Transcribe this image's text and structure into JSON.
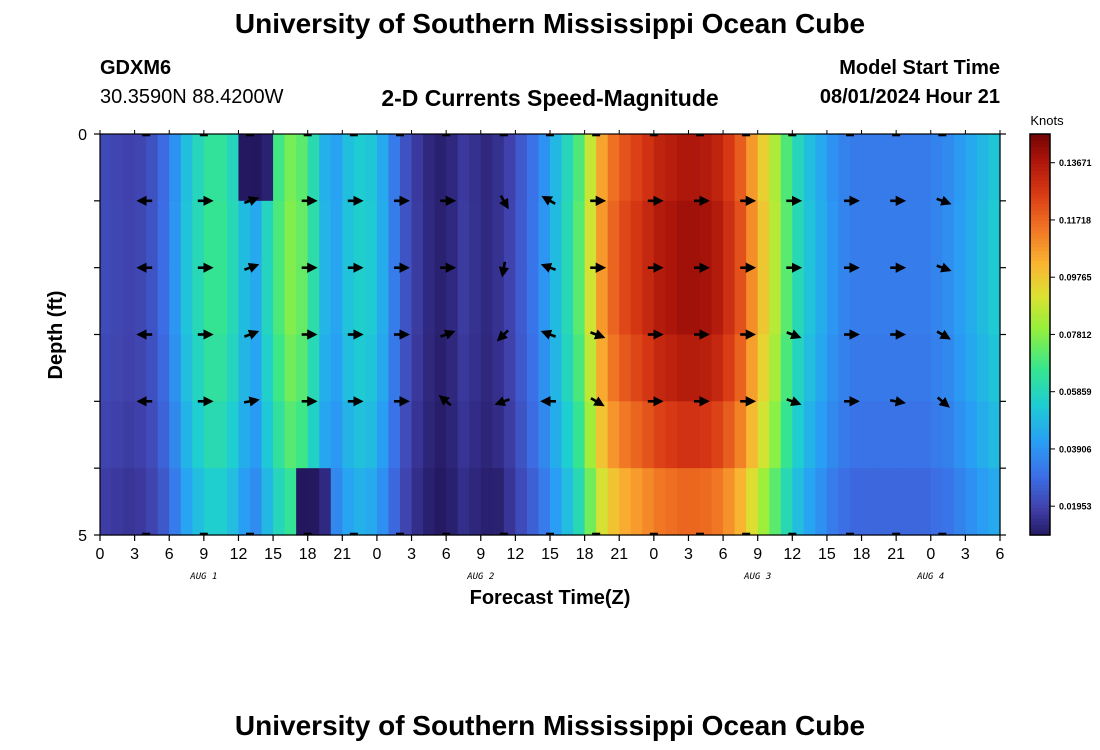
{
  "page": {
    "title": "University of Southern Mississippi Ocean Cube",
    "station_id": "GDXM6",
    "station_coords": "30.3590N  88.4200W",
    "plot_title": "2-D Currents Speed-Magnitude",
    "model_start_label": "Model Start Time",
    "model_start_value": "08/01/2024 Hour 21",
    "footer_title": "University of Southern Mississippi Ocean Cube"
  },
  "chart_data": {
    "type": "heatmap",
    "title": "2-D Currents Speed-Magnitude",
    "xlabel": "Forecast Time(Z)",
    "ylabel": "Depth (ft)",
    "ylim": [
      0,
      5
    ],
    "y_tick_labels": [
      "0",
      "5"
    ],
    "x_tick_labels": [
      "0",
      "3",
      "6",
      "9",
      "12",
      "15",
      "18",
      "21",
      "0",
      "3",
      "6",
      "9",
      "12",
      "15",
      "18",
      "21",
      "0",
      "3",
      "6",
      "9",
      "12",
      "15",
      "18",
      "21",
      "0",
      "3",
      "6"
    ],
    "date_labels": [
      {
        "label": "AUG 1",
        "hour": 9
      },
      {
        "label": "AUG 2",
        "hour": 33
      },
      {
        "label": "AUG 3",
        "hour": 57
      },
      {
        "label": "AUG 4",
        "hour": 72
      }
    ],
    "hours_range": [
      0,
      78
    ],
    "colorbar": {
      "unit": "Knots",
      "range": [
        0.0097,
        0.1465
      ],
      "tick_labels": [
        "0.13671",
        "0.11718",
        "0.09765",
        "0.07812",
        "0.05859",
        "0.03906",
        "0.01953"
      ],
      "tick_values": [
        0.13671,
        0.11718,
        0.09765,
        0.07812,
        0.05859,
        0.03906,
        0.01953
      ]
    },
    "speed_profile": {
      "hours": [
        0,
        1,
        2,
        3,
        4,
        5,
        6,
        7,
        8,
        9,
        10,
        11,
        12,
        13,
        14,
        15,
        16,
        17,
        18,
        19,
        20,
        21,
        22,
        23,
        24,
        25,
        26,
        27,
        28,
        29,
        30,
        31,
        32,
        33,
        34,
        35,
        36,
        37,
        38,
        39,
        40,
        41,
        42,
        43,
        44,
        45,
        46,
        47,
        48,
        49,
        50,
        51,
        52,
        53,
        54,
        55,
        56,
        57,
        58,
        59,
        60,
        61,
        62,
        63,
        64,
        65,
        66,
        67,
        68,
        69,
        70,
        71,
        72,
        73,
        74,
        75,
        76,
        77,
        78
      ],
      "values": [
        0.022,
        0.021,
        0.02,
        0.021,
        0.024,
        0.03,
        0.04,
        0.052,
        0.06,
        0.066,
        0.066,
        0.06,
        0.05,
        0.045,
        0.058,
        0.07,
        0.078,
        0.074,
        0.062,
        0.048,
        0.044,
        0.052,
        0.056,
        0.054,
        0.046,
        0.034,
        0.024,
        0.018,
        0.014,
        0.012,
        0.014,
        0.018,
        0.016,
        0.014,
        0.016,
        0.02,
        0.026,
        0.032,
        0.04,
        0.05,
        0.06,
        0.072,
        0.09,
        0.108,
        0.118,
        0.124,
        0.128,
        0.132,
        0.136,
        0.138,
        0.14,
        0.14,
        0.139,
        0.136,
        0.13,
        0.122,
        0.11,
        0.098,
        0.086,
        0.072,
        0.06,
        0.052,
        0.046,
        0.04,
        0.036,
        0.034,
        0.034,
        0.034,
        0.034,
        0.034,
        0.034,
        0.034,
        0.036,
        0.038,
        0.042,
        0.046,
        0.05,
        0.054,
        0.056
      ]
    },
    "depth_factors": [
      0.98,
      1.0,
      1.0,
      0.97,
      0.92,
      0.84
    ],
    "overrides": [
      {
        "hour": 13,
        "depth_row": 0,
        "value": 0.004
      },
      {
        "hour": 12,
        "depth_row": 0,
        "value": 0.01
      },
      {
        "hour": 14,
        "depth_row": 0,
        "value": 0.012
      },
      {
        "hour": 17,
        "depth_row": 5,
        "value": 0.009
      },
      {
        "hour": 18,
        "depth_row": 5,
        "value": 0.01
      },
      {
        "hour": 19,
        "depth_row": 5,
        "value": 0.014
      },
      {
        "hour": 34,
        "depth_row": 5,
        "value": 0.012
      }
    ],
    "vectors": {
      "hours": [
        4,
        9,
        13,
        18,
        22,
        26,
        30,
        35,
        39,
        43,
        48,
        52,
        56,
        60,
        65,
        69,
        73
      ],
      "depth_rows": [
        1,
        2,
        3,
        4
      ],
      "angles_deg": [
        [
          180,
          0,
          -20,
          0,
          0,
          0,
          0,
          60,
          210,
          0,
          0,
          0,
          0,
          0,
          0,
          0,
          20
        ],
        [
          180,
          0,
          -20,
          0,
          0,
          0,
          0,
          100,
          200,
          0,
          0,
          0,
          0,
          0,
          0,
          0,
          20
        ],
        [
          180,
          0,
          -20,
          0,
          0,
          0,
          -20,
          135,
          200,
          20,
          0,
          0,
          0,
          20,
          0,
          0,
          30
        ],
        [
          180,
          0,
          -10,
          0,
          0,
          0,
          220,
          160,
          180,
          30,
          0,
          0,
          0,
          20,
          0,
          10,
          40
        ]
      ]
    }
  }
}
